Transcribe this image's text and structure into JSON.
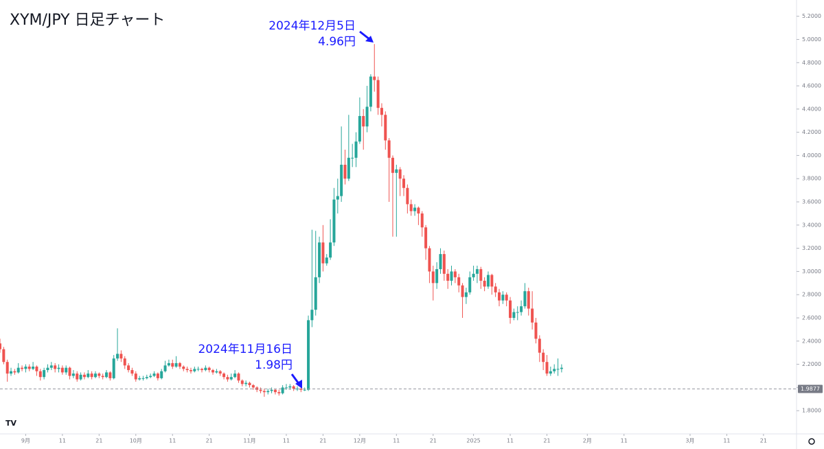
{
  "chart_data": {
    "type": "candlestick",
    "title": "XYM/JPY 日足チャート",
    "up_color": "#26a69a",
    "down_color": "#ef5350",
    "open": [
      2.38,
      2.33,
      2.22,
      2.12,
      2.14,
      2.13,
      2.17,
      2.16,
      2.18,
      2.16,
      2.18,
      2.14,
      2.09,
      2.15,
      2.17,
      2.19,
      2.16,
      2.17,
      2.13,
      2.17,
      2.1,
      2.12,
      2.07,
      2.11,
      2.09,
      2.12,
      2.09,
      2.12,
      2.1,
      2.09,
      2.13,
      2.08,
      2.25,
      2.29,
      2.25,
      2.19,
      2.15,
      2.12,
      2.07,
      2.08,
      2.08,
      2.09,
      2.1,
      2.12,
      2.08,
      2.14,
      2.19,
      2.21,
      2.18,
      2.21,
      2.18,
      2.16,
      2.15,
      2.14,
      2.16,
      2.16,
      2.15,
      2.17,
      2.15,
      2.13,
      2.14,
      2.12,
      2.09,
      2.07,
      2.09,
      2.12,
      2.06,
      2.03,
      2.04,
      2.02,
      2.0,
      1.98,
      1.97,
      1.96,
      1.97,
      1.98,
      1.96,
      1.95,
      2.0,
      2.0,
      2.01,
      1.99,
      1.99,
      1.98,
      1.98,
      2.58,
      2.67,
      2.95,
      3.25,
      3.07,
      3.12,
      3.25,
      3.62,
      3.65,
      3.92,
      3.8,
      3.98,
      3.98,
      4.12,
      4.34,
      4.25,
      4.42,
      4.68,
      4.65,
      4.41,
      4.35,
      4.13,
      3.98,
      3.85,
      3.88,
      3.8,
      3.72,
      3.58,
      3.52,
      3.55,
      3.5,
      3.38,
      3.2,
      3.0,
      2.9,
      3.02,
      3.15,
      2.98,
      2.92,
      3.0,
      2.95,
      2.88,
      2.78,
      2.82,
      2.95,
      2.98,
      3.02,
      2.92,
      2.87,
      2.97,
      2.87,
      2.82,
      2.75,
      2.8,
      2.75,
      2.6,
      2.65,
      2.65,
      2.7,
      2.83,
      2.68,
      2.56,
      2.42,
      2.3,
      2.22,
      2.12,
      2.14,
      2.16,
      2.16
    ],
    "high": [
      2.42,
      2.35,
      2.24,
      2.17,
      2.16,
      2.21,
      2.19,
      2.2,
      2.2,
      2.22,
      2.19,
      2.16,
      2.17,
      2.2,
      2.22,
      2.21,
      2.2,
      2.19,
      2.19,
      2.18,
      2.15,
      2.14,
      2.13,
      2.13,
      2.15,
      2.14,
      2.14,
      2.13,
      2.12,
      2.15,
      2.14,
      2.28,
      2.51,
      2.32,
      2.27,
      2.21,
      2.17,
      2.14,
      2.1,
      2.1,
      2.11,
      2.12,
      2.14,
      2.13,
      2.16,
      2.23,
      2.24,
      2.24,
      2.27,
      2.22,
      2.19,
      2.18,
      2.17,
      2.18,
      2.18,
      2.17,
      2.19,
      2.18,
      2.16,
      2.16,
      2.15,
      2.13,
      2.11,
      2.12,
      2.15,
      2.13,
      2.07,
      2.06,
      2.05,
      2.03,
      2.01,
      2.0,
      1.99,
      1.99,
      2.0,
      1.99,
      1.98,
      2.02,
      2.03,
      2.03,
      2.02,
      2.01,
      2.0,
      2.0,
      2.62,
      3.36,
      3.35,
      3.3,
      3.4,
      3.15,
      3.45,
      3.72,
      3.8,
      4.25,
      4.05,
      4.35,
      4.1,
      4.2,
      4.5,
      4.4,
      4.6,
      4.7,
      4.96,
      4.68,
      4.45,
      4.38,
      4.15,
      4.0,
      3.92,
      3.9,
      3.83,
      3.75,
      3.62,
      3.58,
      3.56,
      3.52,
      3.4,
      3.22,
      3.05,
      3.08,
      3.2,
      3.18,
      3.02,
      3.05,
      3.02,
      2.98,
      2.9,
      2.86,
      3.0,
      3.05,
      3.05,
      3.04,
      2.95,
      3.0,
      2.98,
      2.9,
      2.85,
      2.83,
      2.82,
      2.78,
      2.68,
      2.7,
      2.75,
      2.9,
      2.86,
      2.83,
      2.6,
      2.45,
      2.33,
      2.28,
      2.18,
      2.2,
      2.25,
      2.2
    ],
    "low": [
      2.3,
      2.2,
      2.05,
      2.1,
      2.11,
      2.12,
      2.14,
      2.13,
      2.14,
      2.15,
      2.1,
      2.06,
      2.07,
      2.13,
      2.15,
      2.13,
      2.13,
      2.11,
      2.11,
      2.07,
      2.08,
      2.05,
      2.06,
      2.07,
      2.08,
      2.07,
      2.08,
      2.08,
      2.07,
      2.08,
      2.06,
      2.07,
      2.23,
      2.22,
      2.16,
      2.13,
      2.1,
      2.05,
      2.06,
      2.06,
      2.07,
      2.08,
      2.09,
      2.06,
      2.07,
      2.13,
      2.18,
      2.16,
      2.17,
      2.16,
      2.14,
      2.13,
      2.12,
      2.13,
      2.14,
      2.13,
      2.14,
      2.13,
      2.11,
      2.12,
      2.1,
      2.07,
      2.05,
      2.06,
      2.08,
      2.04,
      2.01,
      2.01,
      2.0,
      1.98,
      1.96,
      1.95,
      1.92,
      1.94,
      1.95,
      1.94,
      1.93,
      1.94,
      1.98,
      1.98,
      1.97,
      1.97,
      1.96,
      1.97,
      1.97,
      2.52,
      2.62,
      2.9,
      3.0,
      3.05,
      3.1,
      3.22,
      3.5,
      3.6,
      3.75,
      3.78,
      3.9,
      3.9,
      4.1,
      4.05,
      4.2,
      4.38,
      4.55,
      4.35,
      4.25,
      4.05,
      3.6,
      3.3,
      3.3,
      3.65,
      3.65,
      3.5,
      3.48,
      3.48,
      3.4,
      3.3,
      3.1,
      2.9,
      2.75,
      2.85,
      2.98,
      2.92,
      2.85,
      2.88,
      2.9,
      2.82,
      2.6,
      2.72,
      2.8,
      2.92,
      2.9,
      2.85,
      2.83,
      2.85,
      2.8,
      2.78,
      2.7,
      2.72,
      2.7,
      2.55,
      2.58,
      2.58,
      2.62,
      2.68,
      2.62,
      2.5,
      2.38,
      2.22,
      2.15,
      2.1,
      2.1,
      2.12,
      2.1,
      2.13
    ],
    "close": [
      2.33,
      2.22,
      2.12,
      2.14,
      2.13,
      2.17,
      2.16,
      2.18,
      2.16,
      2.18,
      2.14,
      2.09,
      2.15,
      2.17,
      2.19,
      2.16,
      2.17,
      2.13,
      2.17,
      2.1,
      2.12,
      2.07,
      2.11,
      2.09,
      2.12,
      2.09,
      2.12,
      2.1,
      2.09,
      2.13,
      2.08,
      2.25,
      2.29,
      2.25,
      2.19,
      2.15,
      2.12,
      2.07,
      2.08,
      2.08,
      2.09,
      2.1,
      2.12,
      2.08,
      2.14,
      2.19,
      2.21,
      2.18,
      2.21,
      2.18,
      2.16,
      2.15,
      2.14,
      2.16,
      2.16,
      2.15,
      2.17,
      2.15,
      2.13,
      2.14,
      2.12,
      2.09,
      2.07,
      2.09,
      2.12,
      2.06,
      2.03,
      2.04,
      2.02,
      2.0,
      1.98,
      1.97,
      1.96,
      1.97,
      1.98,
      1.96,
      1.95,
      2.0,
      2.0,
      2.01,
      1.99,
      1.99,
      1.98,
      1.98,
      2.58,
      2.67,
      2.95,
      3.25,
      3.07,
      3.12,
      3.25,
      3.62,
      3.65,
      3.92,
      3.8,
      3.98,
      3.98,
      4.12,
      4.34,
      4.25,
      4.42,
      4.68,
      4.65,
      4.41,
      4.35,
      4.13,
      3.98,
      3.85,
      3.88,
      3.8,
      3.72,
      3.58,
      3.52,
      3.55,
      3.5,
      3.38,
      3.2,
      3.0,
      2.9,
      3.02,
      3.15,
      2.98,
      2.92,
      3.0,
      2.95,
      2.88,
      2.78,
      2.82,
      2.95,
      2.98,
      3.02,
      2.92,
      2.87,
      2.97,
      2.87,
      2.82,
      2.75,
      2.8,
      2.75,
      2.6,
      2.65,
      2.65,
      2.7,
      2.83,
      2.68,
      2.56,
      2.42,
      2.3,
      2.22,
      2.12,
      2.14,
      2.16,
      2.16,
      2.17
    ],
    "xlim": [
      0,
      217
    ],
    "xticks": [
      {
        "value": 7,
        "label": "9月"
      },
      {
        "value": 17,
        "label": "11"
      },
      {
        "value": 27,
        "label": "21"
      },
      {
        "value": 37,
        "label": "10月"
      },
      {
        "value": 47,
        "label": "11"
      },
      {
        "value": 57,
        "label": "21"
      },
      {
        "value": 68,
        "label": "11月"
      },
      {
        "value": 78,
        "label": "11"
      },
      {
        "value": 88,
        "label": "21"
      },
      {
        "value": 98,
        "label": "12月"
      },
      {
        "value": 108,
        "label": "11"
      },
      {
        "value": 118,
        "label": "21"
      },
      {
        "value": 129,
        "label": "2025"
      },
      {
        "value": 139,
        "label": "11"
      },
      {
        "value": 149,
        "label": "21"
      },
      {
        "value": 160,
        "label": "2月"
      },
      {
        "value": 170,
        "label": "11"
      },
      {
        "value": 188,
        "label": "3月"
      },
      {
        "value": 198,
        "label": "11"
      },
      {
        "value": 208,
        "label": "21"
      }
    ],
    "ylim": [
      1.6,
      5.34
    ],
    "yticks": [
      {
        "value": 1.8,
        "label": "1.8000"
      },
      {
        "value": 2.0,
        "label": "2.0000"
      },
      {
        "value": 2.2,
        "label": "2.2000"
      },
      {
        "value": 2.4,
        "label": "2.4000"
      },
      {
        "value": 2.6,
        "label": "2.6000"
      },
      {
        "value": 2.8,
        "label": "2.8000"
      },
      {
        "value": 3.0,
        "label": "3.0000"
      },
      {
        "value": 3.2,
        "label": "3.2000"
      },
      {
        "value": 3.4,
        "label": "3.4000"
      },
      {
        "value": 3.6,
        "label": "3.6000"
      },
      {
        "value": 3.8,
        "label": "3.8000"
      },
      {
        "value": 4.0,
        "label": "4.0000"
      },
      {
        "value": 4.2,
        "label": "4.2000"
      },
      {
        "value": 4.4,
        "label": "4.4000"
      },
      {
        "value": 4.6,
        "label": "4.6000"
      },
      {
        "value": 4.8,
        "label": "4.8000"
      },
      {
        "value": 5.0,
        "label": "5.0000"
      },
      {
        "value": 5.2,
        "label": "5.2000"
      }
    ],
    "price_line": {
      "value": 1.9877,
      "label": "1.9877"
    },
    "grid": false,
    "annotations": [
      {
        "date": "2024年12月5日",
        "price": "4.96円"
      },
      {
        "date": "2024年11月16日",
        "price": "1.98円"
      }
    ]
  }
}
